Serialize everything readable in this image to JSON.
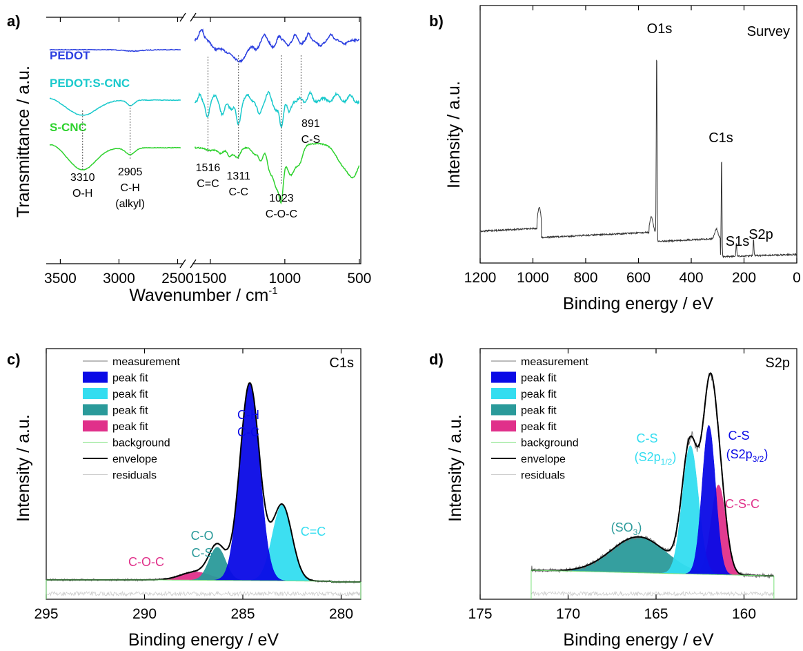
{
  "colors": {
    "pedot": "#2b3fe0",
    "pedot_scnc": "#19c9cc",
    "scnc": "#2ed22e",
    "blue_fill": "#0a0ae6",
    "cyan_fill": "#33ddf0",
    "teal_fill": "#2a9a9a",
    "pink_fill": "#e0308a",
    "background_line": "#77e077",
    "measurement_line": "#777777",
    "envelope_line": "#000000",
    "residual_line": "#cccccc"
  },
  "chart_data": [
    {
      "panel": "a)",
      "type": "line",
      "xlabel": "Wavenumber / cm",
      "xlabel_sup": "-1",
      "ylabel": "Transmittance / a.u.",
      "xticks": [
        3500,
        3000,
        2500,
        1500,
        1000,
        500
      ],
      "x_break": [
        2450,
        1600
      ],
      "series": [
        {
          "name": "PEDOT",
          "color_key": "pedot"
        },
        {
          "name": "PEDOT:S-CNC",
          "color_key": "pedot_scnc"
        },
        {
          "name": "S-CNC",
          "color_key": "scnc"
        }
      ],
      "annotations": [
        {
          "x": 3310,
          "lines": [
            "3310",
            "O-H"
          ]
        },
        {
          "x": 2905,
          "lines": [
            "2905",
            "C-H",
            "(alkyl)"
          ]
        },
        {
          "x": 1516,
          "lines": [
            "1516",
            "C=C"
          ]
        },
        {
          "x": 1311,
          "lines": [
            "1311",
            "C-C"
          ]
        },
        {
          "x": 1023,
          "lines": [
            "1023",
            "C-O-C"
          ]
        },
        {
          "x": 891,
          "lines": [
            "891",
            "C-S"
          ]
        }
      ]
    },
    {
      "panel": "b)",
      "type": "line",
      "xlabel": "Binding energy / eV",
      "ylabel": "Intensity / a.u.",
      "title": "Survey",
      "xlim": [
        1200,
        0
      ],
      "xticks": [
        1200,
        1000,
        800,
        600,
        400,
        200,
        0
      ],
      "peaks": [
        {
          "x": 531,
          "label": "O1s"
        },
        {
          "x": 285,
          "label": "C1s"
        },
        {
          "x": 229,
          "label": "S1s"
        },
        {
          "x": 164,
          "label": "S2p"
        }
      ]
    },
    {
      "panel": "c)",
      "type": "area",
      "xlabel": "Binding energy / eV",
      "ylabel": "Intensity / a.u.",
      "title": "C1s",
      "xlim": [
        295,
        279
      ],
      "xticks": [
        295,
        290,
        285,
        280
      ],
      "legend": [
        "measurement",
        "peak fit",
        "peak fit",
        "peak fit",
        "peak fit",
        "background",
        "envelope",
        "residuals"
      ],
      "components": [
        {
          "center": 284.7,
          "label_lines": [
            "C-H",
            "C-C"
          ],
          "color_key": "blue_fill"
        },
        {
          "center": 283.0,
          "label_lines": [
            "C=C"
          ],
          "color_key": "cyan_fill"
        },
        {
          "center": 286.3,
          "label_lines": [
            "C-O",
            "C-S"
          ],
          "color_key": "teal_fill"
        },
        {
          "center": 287.4,
          "label_lines": [
            "C-O-C"
          ],
          "color_key": "pink_fill"
        }
      ]
    },
    {
      "panel": "d)",
      "type": "area",
      "xlabel": "Binding energy / eV",
      "ylabel": "Intensity / a.u.",
      "title": "S2p",
      "xlim": [
        175,
        157
      ],
      "xticks": [
        175,
        170,
        165,
        160
      ],
      "legend": [
        "measurement",
        "peak fit",
        "peak fit",
        "peak fit",
        "peak fit",
        "background",
        "envelope",
        "residuals"
      ],
      "components": [
        {
          "center": 162.0,
          "label_main": "C-S",
          "label_sub": "(S2p",
          "label_subscript": "3/2",
          "label_close": ")",
          "color_key": "blue_fill"
        },
        {
          "center": 163.1,
          "label_main": "C-S",
          "label_sub": "(S2p",
          "label_subscript": "1/2",
          "label_close": ")",
          "color_key": "cyan_fill"
        },
        {
          "center": 166.0,
          "label_main": "(SO",
          "label_subscript": "3",
          "label_close": ")",
          "color_key": "teal_fill"
        },
        {
          "center": 161.5,
          "label_main": "C-S-C",
          "color_key": "pink_fill"
        }
      ]
    }
  ]
}
